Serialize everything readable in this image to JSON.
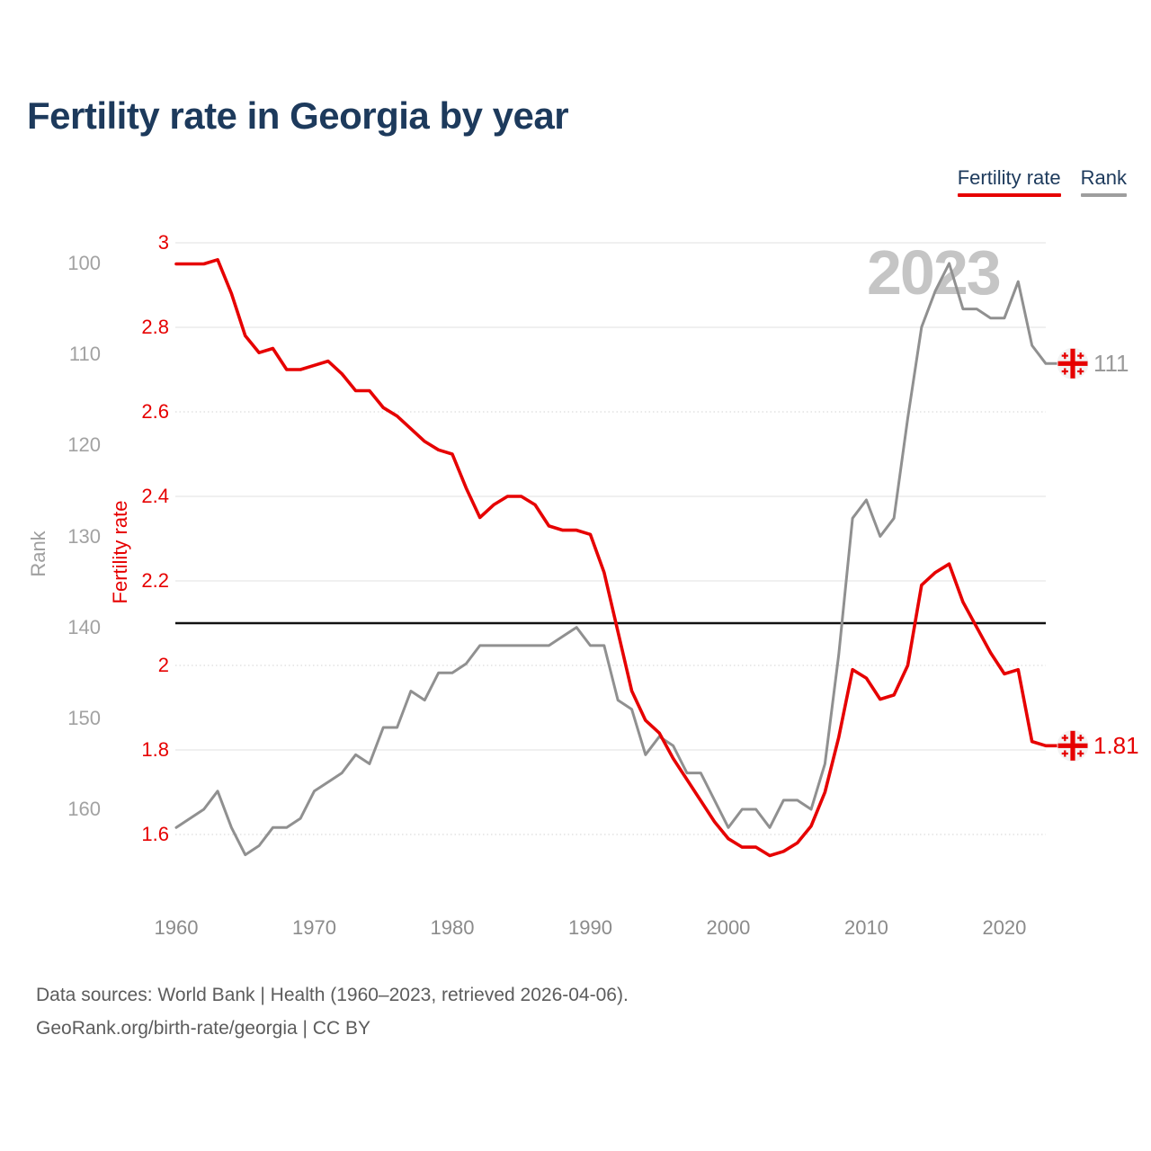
{
  "page": {
    "title": "Fertility rate in Georgia by year"
  },
  "legend": {
    "items": [
      {
        "label": "Fertility rate",
        "underline_color": "#e60000"
      },
      {
        "label": "Rank",
        "underline_color": "#9e9e9e"
      }
    ]
  },
  "watermark": "2023",
  "end_labels": {
    "fertility": "1.81",
    "rank": "111"
  },
  "footer": {
    "line1": "Data sources: World Bank | Health (1960–2023, retrieved 2026-04-06).",
    "line2": "GeoRank.org/birth-rate/georgia | CC BY"
  },
  "chart_data": {
    "type": "line",
    "title": "Fertility rate in Georgia by year",
    "x_range": [
      1960,
      2023
    ],
    "x_step": 1,
    "grid": true,
    "legend_position": "top-right",
    "watermark": "2023",
    "axes": {
      "x": {
        "ticks": [
          1960,
          1970,
          1980,
          1990,
          2000,
          2010,
          2020
        ]
      },
      "fertility": {
        "label": "Fertility rate",
        "color": "#e60000",
        "ticks": [
          3,
          2.8,
          2.6,
          2.4,
          2.2,
          2,
          1.8,
          1.6
        ],
        "range": [
          1.45,
          3.05
        ]
      },
      "rank": {
        "label": "Rank",
        "color": "#9f9f9f",
        "ticks": [
          100,
          110,
          120,
          130,
          140,
          150,
          160
        ],
        "range": [
          97,
          168
        ],
        "inverted": true
      }
    },
    "reference_line": {
      "axis": "fertility",
      "value": 2.1,
      "color": "#000000"
    },
    "series": [
      {
        "name": "Fertility rate",
        "axis": "fertility",
        "color": "#e60000",
        "end_label": "1.81",
        "values": [
          2.95,
          2.95,
          2.95,
          2.96,
          2.88,
          2.78,
          2.74,
          2.75,
          2.7,
          2.7,
          2.71,
          2.72,
          2.69,
          2.65,
          2.65,
          2.61,
          2.59,
          2.56,
          2.53,
          2.51,
          2.5,
          2.42,
          2.35,
          2.38,
          2.4,
          2.4,
          2.38,
          2.33,
          2.32,
          2.32,
          2.31,
          2.22,
          2.08,
          1.94,
          1.87,
          1.84,
          1.78,
          1.73,
          1.68,
          1.63,
          1.59,
          1.57,
          1.57,
          1.55,
          1.56,
          1.58,
          1.62,
          1.7,
          1.83,
          1.99,
          1.97,
          1.92,
          1.93,
          2.0,
          2.19,
          2.22,
          2.24,
          2.15,
          2.09,
          2.03,
          1.98,
          1.99,
          1.82,
          1.81
        ]
      },
      {
        "name": "Rank",
        "axis": "rank",
        "color": "#909090",
        "end_label": "111",
        "values": [
          162,
          161,
          160,
          158,
          162,
          165,
          164,
          162,
          162,
          161,
          158,
          157,
          156,
          154,
          155,
          151,
          151,
          147,
          148,
          145,
          145,
          144,
          142,
          142,
          142,
          142,
          142,
          142,
          141,
          140,
          142,
          142,
          148,
          149,
          154,
          152,
          153,
          156,
          156,
          159,
          162,
          160,
          160,
          162,
          159,
          159,
          160,
          155,
          143,
          128,
          126,
          130,
          128,
          117,
          107,
          103,
          100,
          105,
          105,
          106,
          106,
          102,
          109,
          111
        ]
      }
    ]
  }
}
